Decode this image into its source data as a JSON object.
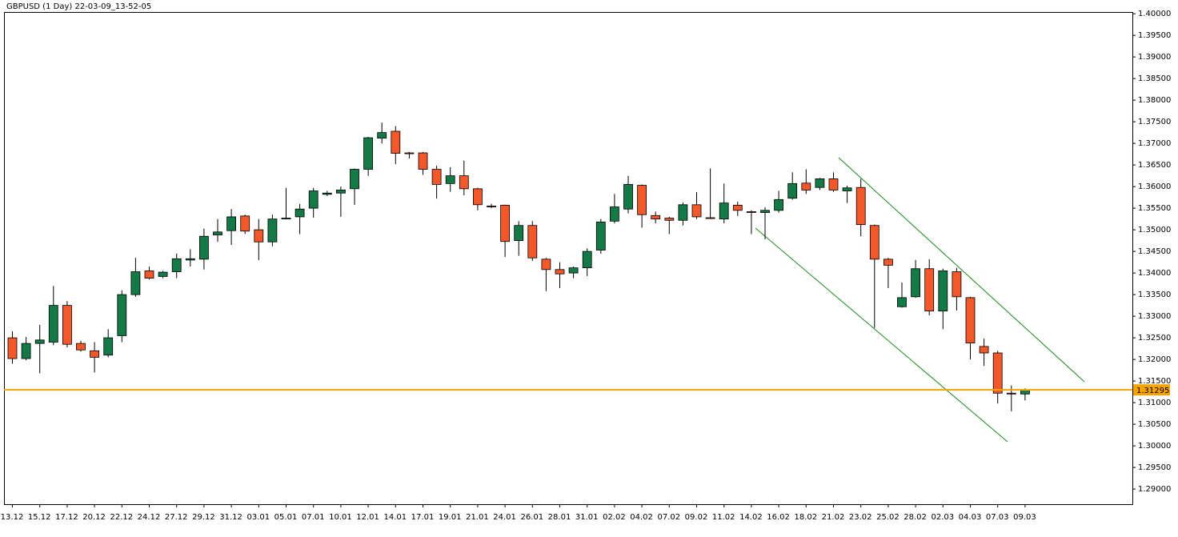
{
  "chart_data": {
    "type": "candlestick",
    "title": "GBPUSD (1 Day) 22-03-09_13-52-05",
    "categories": [
      "13.12",
      null,
      "15.12",
      null,
      "17.12",
      null,
      "20.12",
      null,
      "22.12",
      null,
      "24.12",
      null,
      "27.12",
      null,
      "29.12",
      null,
      "31.12",
      null,
      "03.01",
      null,
      "05.01",
      null,
      "07.01",
      null,
      "10.01",
      null,
      "12.01",
      null,
      "14.01",
      null,
      "17.01",
      null,
      "19.01",
      null,
      "21.01",
      null,
      "24.01",
      null,
      "26.01",
      null,
      "28.01",
      null,
      "31.01",
      null,
      "02.02",
      null,
      "04.02",
      null,
      "07.02",
      null,
      "09.02",
      null,
      "11.02",
      null,
      "14.02",
      null,
      "16.02",
      null,
      "18.02",
      null,
      "21.02",
      null,
      "23.02",
      null,
      "25.02",
      null,
      "28.02",
      null,
      "02.03",
      null,
      "04.03",
      null,
      "07.03",
      null,
      "09.03"
    ],
    "open": [
      1.325,
      1.3202,
      1.3237,
      1.324,
      1.3325,
      1.3237,
      1.322,
      1.321,
      1.3255,
      1.335,
      1.3405,
      1.3392,
      1.3403,
      1.343,
      1.3432,
      1.3488,
      1.3498,
      1.3532,
      1.35,
      1.3472,
      1.3525,
      1.353,
      1.355,
      1.3582,
      1.3585,
      1.3595,
      1.364,
      1.3712,
      1.3728,
      1.3678,
      1.3678,
      1.364,
      1.3607,
      1.3625,
      1.3595,
      1.3555,
      1.3557,
      1.3475,
      1.351,
      1.3432,
      1.3408,
      1.34,
      1.3412,
      1.3453,
      1.352,
      1.3548,
      1.3603,
      1.3533,
      1.3527,
      1.3522,
      1.3558,
      1.3528,
      1.3525,
      1.3557,
      1.3542,
      1.354,
      1.3545,
      1.3573,
      1.3608,
      1.3598,
      1.3618,
      1.359,
      1.3598,
      1.351,
      1.3432,
      1.3322,
      1.3345,
      1.341,
      1.3312,
      1.3403,
      1.3343,
      1.323,
      1.3215,
      1.3122,
      1.312
    ],
    "high": [
      1.3265,
      1.3252,
      1.328,
      1.337,
      1.3335,
      1.3243,
      1.324,
      1.327,
      1.336,
      1.3435,
      1.3415,
      1.3405,
      1.3445,
      1.3455,
      1.3503,
      1.3525,
      1.3548,
      1.3535,
      1.3525,
      1.3535,
      1.3597,
      1.356,
      1.3597,
      1.359,
      1.36,
      1.3642,
      1.3715,
      1.3748,
      1.374,
      1.368,
      1.368,
      1.3648,
      1.3645,
      1.366,
      1.3597,
      1.356,
      1.3558,
      1.352,
      1.352,
      1.3435,
      1.3425,
      1.3415,
      1.3457,
      1.3525,
      1.3583,
      1.3625,
      1.3605,
      1.3542,
      1.353,
      1.3563,
      1.3587,
      1.3642,
      1.3607,
      1.3565,
      1.3545,
      1.3552,
      1.359,
      1.3633,
      1.364,
      1.362,
      1.3633,
      1.3602,
      1.3618,
      1.3512,
      1.3435,
      1.3378,
      1.343,
      1.3432,
      1.341,
      1.3412,
      1.3345,
      1.3248,
      1.322,
      1.314,
      1.3133
    ],
    "low": [
      1.319,
      1.3198,
      1.3168,
      1.3233,
      1.3228,
      1.3218,
      1.317,
      1.3205,
      1.324,
      1.3345,
      1.3385,
      1.3388,
      1.3388,
      1.3415,
      1.3408,
      1.3472,
      1.3465,
      1.349,
      1.343,
      1.3462,
      1.3525,
      1.349,
      1.3528,
      1.3578,
      1.353,
      1.3558,
      1.3625,
      1.37,
      1.3652,
      1.3665,
      1.3627,
      1.3572,
      1.3588,
      1.358,
      1.3545,
      1.355,
      1.3437,
      1.344,
      1.3428,
      1.3358,
      1.3365,
      1.3388,
      1.3393,
      1.3445,
      1.3515,
      1.3538,
      1.3505,
      1.3515,
      1.349,
      1.351,
      1.3525,
      1.3525,
      1.3515,
      1.3532,
      1.349,
      1.3478,
      1.354,
      1.357,
      1.3583,
      1.3592,
      1.3588,
      1.3562,
      1.3485,
      1.3273,
      1.3365,
      1.332,
      1.3343,
      1.3302,
      1.327,
      1.3313,
      1.32,
      1.3185,
      1.3098,
      1.308,
      1.3105
    ],
    "close": [
      1.3202,
      1.3237,
      1.3245,
      1.3325,
      1.3235,
      1.3222,
      1.3205,
      1.325,
      1.335,
      1.3403,
      1.3388,
      1.3402,
      1.3433,
      1.3433,
      1.3485,
      1.3495,
      1.353,
      1.3497,
      1.3472,
      1.3525,
      1.3527,
      1.3548,
      1.359,
      1.3585,
      1.3592,
      1.364,
      1.3713,
      1.3725,
      1.3677,
      1.3676,
      1.364,
      1.3605,
      1.3625,
      1.3595,
      1.3558,
      1.3553,
      1.3473,
      1.351,
      1.3435,
      1.3408,
      1.3398,
      1.3412,
      1.345,
      1.3518,
      1.3553,
      1.3605,
      1.3535,
      1.3525,
      1.3522,
      1.3558,
      1.353,
      1.3526,
      1.3562,
      1.3545,
      1.354,
      1.3545,
      1.357,
      1.3607,
      1.3592,
      1.3618,
      1.3592,
      1.3597,
      1.3512,
      1.3432,
      1.3418,
      1.3343,
      1.341,
      1.3312,
      1.3405,
      1.3345,
      1.3238,
      1.3215,
      1.3122,
      1.312,
      1.313
    ],
    "up_color": "#137a47",
    "down_color": "#f2582a",
    "current_price": 1.31295,
    "current_price_color": "#f5a300",
    "ylim": [
      1.2865,
      1.4004
    ],
    "yticks": [
      {
        "value": 1.4,
        "label": "1.40000"
      },
      {
        "value": 1.395,
        "label": "1.39500"
      },
      {
        "value": 1.39,
        "label": "1.39000"
      },
      {
        "value": 1.385,
        "label": "1.38500"
      },
      {
        "value": 1.38,
        "label": "1.38000"
      },
      {
        "value": 1.375,
        "label": "1.37500"
      },
      {
        "value": 1.37,
        "label": "1.37000"
      },
      {
        "value": 1.365,
        "label": "1.36500"
      },
      {
        "value": 1.36,
        "label": "1.36000"
      },
      {
        "value": 1.355,
        "label": "1.35500"
      },
      {
        "value": 1.35,
        "label": "1.35000"
      },
      {
        "value": 1.345,
        "label": "1.34500"
      },
      {
        "value": 1.34,
        "label": "1.34000"
      },
      {
        "value": 1.335,
        "label": "1.33500"
      },
      {
        "value": 1.33,
        "label": "1.33000"
      },
      {
        "value": 1.325,
        "label": "1.32500"
      },
      {
        "value": 1.32,
        "label": "1.32000"
      },
      {
        "value": 1.315,
        "label": "1.31500"
      },
      {
        "value": 1.31,
        "label": "1.31000"
      },
      {
        "value": 1.305,
        "label": "1.30500"
      },
      {
        "value": 1.3,
        "label": "1.30000"
      },
      {
        "value": 1.295,
        "label": "1.29500"
      },
      {
        "value": 1.29,
        "label": "1.29000"
      }
    ]
  }
}
